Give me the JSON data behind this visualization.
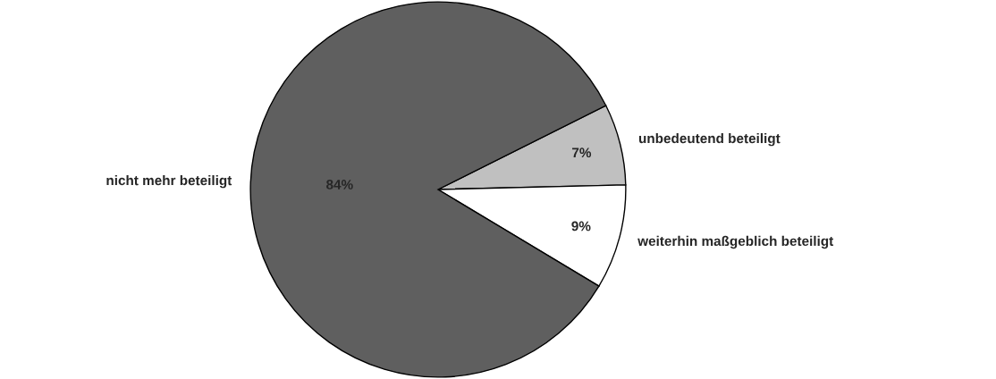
{
  "chart_data": {
    "type": "pie",
    "categories": [
      "unbedeutend beteiligt",
      "weiterhin maßgeblich beteiligt",
      "nicht mehr beteiligt"
    ],
    "values": [
      7,
      9,
      84
    ],
    "colors": [
      "#c0c0c0",
      "#ffffff",
      "#5f5f5f"
    ],
    "value_labels": [
      "7%",
      "9%",
      "84%"
    ]
  }
}
